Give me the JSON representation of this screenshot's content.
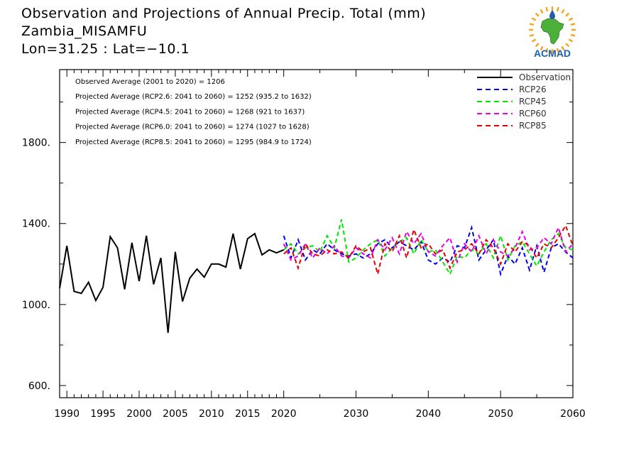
{
  "header": {
    "title": "Observation and Projections of Annual Precip. Total (mm)",
    "location": "Zambia_MISAMFU",
    "coords": "Lon=31.25 : Lat=−10.1"
  },
  "logo": {
    "text": "ACMAD",
    "colors": {
      "africa": "#4caf3a",
      "sun": "#f5a623",
      "drop": "#1e5fa8",
      "text": "#1e5fa8"
    }
  },
  "stats": [
    "Observed Average (2001 to 2020) = 1206",
    "Projected Average (RCP2.6: 2041 to 2060) = 1252 (935.2 to 1632)",
    "Projected Average (RCP4.5: 2041 to 2060) = 1268 (921 to 1637)",
    "Projected Average (RCP6.0: 2041 to 2060) = 1274 (1027 to 1628)",
    "Projected Average (RCP8.5: 2041 to 2060) = 1295 (984.9 to 1724)"
  ],
  "chart_data": {
    "type": "line",
    "xlim": [
      1989,
      2060
    ],
    "ylim": [
      540,
      2160
    ],
    "y_ticks": [
      600,
      1000,
      1400,
      1800
    ],
    "y_tick_labels": [
      "600.",
      "1000.",
      "1400.",
      "1800."
    ],
    "x_ticks": [
      1990,
      1995,
      2000,
      2005,
      2010,
      2015,
      2020,
      2030,
      2040,
      2050,
      2060
    ],
    "x_tick_labels": [
      "1990",
      "1995",
      "2000",
      "2005",
      "2010",
      "2015",
      "2020",
      "2030",
      "2040",
      "2050",
      "2060"
    ],
    "legend_position": "top-right",
    "series": [
      {
        "name": "Observation",
        "color": "#000000",
        "style": "solid",
        "x": [
          1989,
          1990,
          1991,
          1992,
          1993,
          1994,
          1995,
          1996,
          1997,
          1998,
          1999,
          2000,
          2001,
          2002,
          2003,
          2004,
          2005,
          2006,
          2007,
          2008,
          2009,
          2010,
          2011,
          2012,
          2013,
          2014,
          2015,
          2016,
          2017,
          2018,
          2019,
          2020
        ],
        "y": [
          1080,
          1290,
          1065,
          1055,
          1110,
          1020,
          1085,
          1335,
          1280,
          1075,
          1305,
          1115,
          1340,
          1100,
          1230,
          860,
          1260,
          1015,
          1130,
          1175,
          1135,
          1200,
          1200,
          1185,
          1350,
          1175,
          1325,
          1350,
          1245,
          1270,
          1255,
          1270
        ]
      },
      {
        "name": "RCP26",
        "color": "#0000e6",
        "style": "dashed",
        "x": [
          2020,
          2021,
          2022,
          2023,
          2024,
          2025,
          2026,
          2027,
          2028,
          2029,
          2030,
          2031,
          2032,
          2033,
          2034,
          2035,
          2036,
          2037,
          2038,
          2039,
          2040,
          2041,
          2042,
          2043,
          2044,
          2045,
          2046,
          2047,
          2048,
          2049,
          2050,
          2051,
          2052,
          2053,
          2054,
          2055,
          2056,
          2057,
          2058,
          2059,
          2060
        ],
        "y": [
          1340,
          1230,
          1320,
          1220,
          1270,
          1250,
          1300,
          1270,
          1250,
          1240,
          1250,
          1230,
          1250,
          1300,
          1320,
          1280,
          1310,
          1290,
          1270,
          1310,
          1220,
          1200,
          1230,
          1210,
          1290,
          1280,
          1380,
          1220,
          1270,
          1320,
          1150,
          1240,
          1200,
          1280,
          1170,
          1290,
          1160,
          1280,
          1300,
          1260,
          1230
        ]
      },
      {
        "name": "RCP45",
        "color": "#00e600",
        "style": "dashed",
        "x": [
          2020,
          2021,
          2022,
          2023,
          2024,
          2025,
          2026,
          2027,
          2028,
          2029,
          2030,
          2031,
          2032,
          2033,
          2034,
          2035,
          2036,
          2037,
          2038,
          2039,
          2040,
          2041,
          2042,
          2043,
          2044,
          2045,
          2046,
          2047,
          2048,
          2049,
          2050,
          2051,
          2052,
          2053,
          2054,
          2055,
          2056,
          2057,
          2058,
          2059,
          2060
        ],
        "y": [
          1270,
          1300,
          1250,
          1280,
          1290,
          1260,
          1340,
          1280,
          1420,
          1210,
          1230,
          1270,
          1300,
          1320,
          1240,
          1280,
          1310,
          1330,
          1250,
          1320,
          1260,
          1270,
          1210,
          1150,
          1240,
          1230,
          1270,
          1250,
          1300,
          1230,
          1340,
          1220,
          1290,
          1310,
          1250,
          1190,
          1260,
          1320,
          1350,
          1280,
          1270
        ]
      },
      {
        "name": "RCP60",
        "color": "#e600e6",
        "style": "dashed",
        "x": [
          2020,
          2021,
          2022,
          2023,
          2024,
          2025,
          2026,
          2027,
          2028,
          2029,
          2030,
          2031,
          2032,
          2033,
          2034,
          2035,
          2036,
          2037,
          2038,
          2039,
          2040,
          2041,
          2042,
          2043,
          2044,
          2045,
          2046,
          2047,
          2048,
          2049,
          2050,
          2051,
          2052,
          2053,
          2054,
          2055,
          2056,
          2057,
          2058,
          2059,
          2060
        ],
        "y": [
          1300,
          1220,
          1240,
          1300,
          1230,
          1280,
          1250,
          1290,
          1240,
          1230,
          1280,
          1250,
          1230,
          1320,
          1270,
          1330,
          1250,
          1360,
          1300,
          1350,
          1260,
          1240,
          1290,
          1330,
          1210,
          1300,
          1260,
          1340,
          1250,
          1320,
          1260,
          1240,
          1280,
          1360,
          1270,
          1280,
          1330,
          1300,
          1380,
          1260,
          1300
        ]
      },
      {
        "name": "RCP85",
        "color": "#e60000",
        "style": "dashed",
        "x": [
          2020,
          2021,
          2022,
          2023,
          2024,
          2025,
          2026,
          2027,
          2028,
          2029,
          2030,
          2031,
          2032,
          2033,
          2034,
          2035,
          2036,
          2037,
          2038,
          2039,
          2040,
          2041,
          2042,
          2043,
          2044,
          2045,
          2046,
          2047,
          2048,
          2049,
          2050,
          2051,
          2052,
          2053,
          2054,
          2055,
          2056,
          2057,
          2058,
          2059,
          2060
        ],
        "y": [
          1250,
          1280,
          1180,
          1300,
          1250,
          1240,
          1270,
          1250,
          1260,
          1230,
          1290,
          1260,
          1280,
          1150,
          1300,
          1260,
          1340,
          1230,
          1370,
          1280,
          1300,
          1250,
          1270,
          1180,
          1260,
          1270,
          1300,
          1250,
          1320,
          1280,
          1200,
          1300,
          1260,
          1310,
          1290,
          1230,
          1300,
          1280,
          1330,
          1390,
          1290
        ]
      }
    ]
  }
}
